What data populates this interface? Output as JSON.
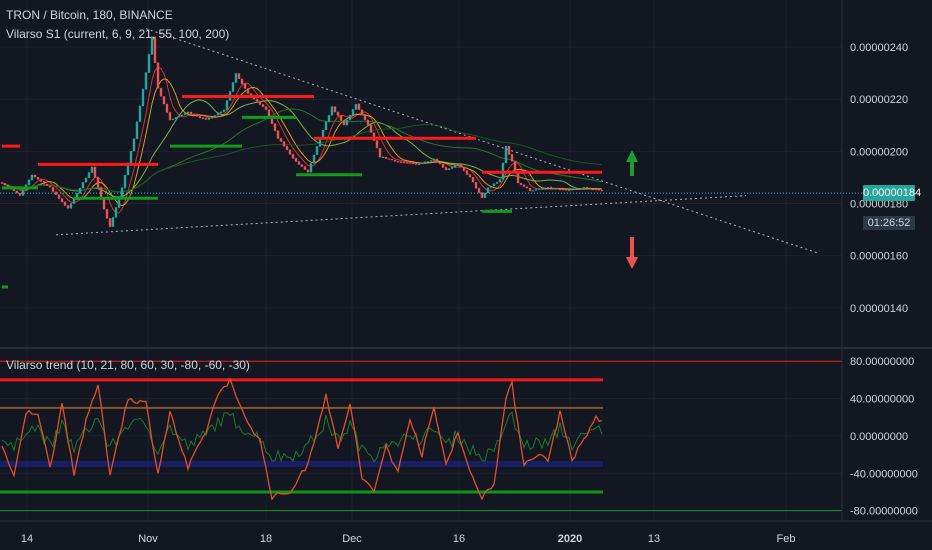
{
  "header": {
    "title": "TRON / Bitcoin, 180, BINANCE",
    "indicator": "Vilarso S1 (current, 6, 9, 21, 55, 100, 200)"
  },
  "oscillator": {
    "title": "Vilarso trend (10, 21, 80, 60, 30, -80, -60, -30)"
  },
  "price_badge": {
    "value": "0.00000184",
    "countdown": "01:26:52",
    "color": "#26a69a"
  },
  "colors": {
    "background": "#131722",
    "grid": "#1e222d",
    "candle_up": "#26a69a",
    "candle_down": "#ef5350",
    "red_level": "#ff1a1a",
    "green_level": "#0f9d1a",
    "arrow_up": "#1f9a2d",
    "arrow_down": "#ef5350",
    "osc_line": "#e0502a",
    "osc_secondary": "#1e7a2a"
  },
  "icons": {
    "arrow_up": "arrow-up-icon",
    "arrow_down": "arrow-down-icon"
  },
  "chart_data": [
    {
      "type": "candlestick",
      "title": "TRON / Bitcoin, 180, BINANCE",
      "y_ticks": [
        "0.00000240",
        "0.00000220",
        "0.00000200",
        "0.00000180",
        "0.00000160",
        "0.00000140"
      ],
      "x_ticks": [
        "14",
        "Nov",
        "18",
        "Dec",
        "16",
        "2020",
        "13",
        "Feb"
      ],
      "ylim": [
        1.25e-06,
        2.58e-06
      ],
      "last_price": 1.84e-06,
      "price_path": [
        {
          "t": 0,
          "p": 1.88e-06
        },
        {
          "t": 3,
          "p": 1.83e-06
        },
        {
          "t": 5,
          "p": 1.91e-06
        },
        {
          "t": 8,
          "p": 1.86e-06
        },
        {
          "t": 11,
          "p": 1.78e-06
        },
        {
          "t": 13,
          "p": 1.86e-06
        },
        {
          "t": 15,
          "p": 1.94e-06
        },
        {
          "t": 17,
          "p": 1.78e-06
        },
        {
          "t": 18,
          "p": 1.71e-06
        },
        {
          "t": 20,
          "p": 1.86e-06
        },
        {
          "t": 22,
          "p": 2.05e-06
        },
        {
          "t": 24,
          "p": 2.3e-06
        },
        {
          "t": 25,
          "p": 2.44e-06
        },
        {
          "t": 26,
          "p": 2.24e-06
        },
        {
          "t": 28,
          "p": 2.12e-06
        },
        {
          "t": 31,
          "p": 2.15e-06
        },
        {
          "t": 34,
          "p": 2.12e-06
        },
        {
          "t": 37,
          "p": 2.16e-06
        },
        {
          "t": 39,
          "p": 2.3e-06
        },
        {
          "t": 41,
          "p": 2.22e-06
        },
        {
          "t": 44,
          "p": 2.16e-06
        },
        {
          "t": 46,
          "p": 2.05e-06
        },
        {
          "t": 49,
          "p": 1.96e-06
        },
        {
          "t": 51,
          "p": 1.92e-06
        },
        {
          "t": 53,
          "p": 2.05e-06
        },
        {
          "t": 55,
          "p": 2.17e-06
        },
        {
          "t": 57,
          "p": 2.1e-06
        },
        {
          "t": 59,
          "p": 2.18e-06
        },
        {
          "t": 61,
          "p": 2.1e-06
        },
        {
          "t": 63,
          "p": 1.98e-06
        },
        {
          "t": 66,
          "p": 1.96e-06
        },
        {
          "t": 69,
          "p": 1.95e-06
        },
        {
          "t": 72,
          "p": 1.97e-06
        },
        {
          "t": 74,
          "p": 1.93e-06
        },
        {
          "t": 76,
          "p": 1.95e-06
        },
        {
          "t": 78,
          "p": 1.9e-06
        },
        {
          "t": 80,
          "p": 1.82e-06
        },
        {
          "t": 81,
          "p": 1.86e-06
        },
        {
          "t": 83,
          "p": 1.89e-06
        },
        {
          "t": 84,
          "p": 2.02e-06
        },
        {
          "t": 85,
          "p": 1.96e-06
        },
        {
          "t": 86,
          "p": 1.88e-06
        },
        {
          "t": 88,
          "p": 1.85e-06
        },
        {
          "t": 91,
          "p": 1.86e-06
        },
        {
          "t": 94,
          "p": 1.85e-06
        },
        {
          "t": 97,
          "p": 1.86e-06
        },
        {
          "t": 100,
          "p": 1.85e-06
        }
      ],
      "red_levels": [
        {
          "t0": 0,
          "t1": 3,
          "p": 2.02e-06
        },
        {
          "t0": 6,
          "t1": 26,
          "p": 1.95e-06
        },
        {
          "t0": 30,
          "t1": 52,
          "p": 2.21e-06
        },
        {
          "t0": 52,
          "t1": 79,
          "p": 2.05e-06
        },
        {
          "t0": 80,
          "t1": 100,
          "p": 1.92e-06
        }
      ],
      "green_levels": [
        {
          "t0": 0,
          "t1": 6,
          "p": 1.86e-06
        },
        {
          "t0": 12,
          "t1": 26,
          "p": 1.82e-06
        },
        {
          "t0": 28,
          "t1": 40,
          "p": 2.02e-06
        },
        {
          "t0": 40,
          "t1": 49,
          "p": 2.13e-06
        },
        {
          "t0": 49,
          "t1": 60,
          "p": 1.91e-06
        },
        {
          "t0": 80,
          "t1": 85,
          "p": 1.77e-06
        },
        {
          "t0": 0,
          "t1": 1,
          "p": 1.48e-06
        }
      ],
      "trendlines": [
        {
          "t0": 24,
          "p0": 2.47e-06,
          "t1": 136,
          "p1": 1.61e-06
        },
        {
          "t0": 9,
          "p0": 1.68e-06,
          "t1": 124,
          "p1": 1.83e-06
        }
      ]
    },
    {
      "type": "line",
      "title": "Vilarso trend (10, 21, 80, 60, 30, -80, -60, -30)",
      "y_ticks": [
        "80.00000000",
        "40.00000000",
        "0.00000000",
        "-40.00000000",
        "-80.00000000"
      ],
      "ylim": [
        -90,
        92
      ],
      "levels": [
        80,
        60,
        30,
        -30,
        -60,
        -80
      ],
      "oscillator_path": [
        {
          "t": 0,
          "v": -10
        },
        {
          "t": 2,
          "v": -45
        },
        {
          "t": 4,
          "v": 25
        },
        {
          "t": 6,
          "v": 25
        },
        {
          "t": 8,
          "v": -35
        },
        {
          "t": 10,
          "v": 35
        },
        {
          "t": 12,
          "v": -40
        },
        {
          "t": 14,
          "v": 15
        },
        {
          "t": 16,
          "v": 55
        },
        {
          "t": 18,
          "v": -40
        },
        {
          "t": 21,
          "v": 40
        },
        {
          "t": 24,
          "v": 35
        },
        {
          "t": 26,
          "v": -40
        },
        {
          "t": 28,
          "v": 25
        },
        {
          "t": 31,
          "v": -35
        },
        {
          "t": 34,
          "v": 5
        },
        {
          "t": 36,
          "v": 45
        },
        {
          "t": 38,
          "v": 60
        },
        {
          "t": 39,
          "v": 40
        },
        {
          "t": 41,
          "v": 15
        },
        {
          "t": 43,
          "v": -5
        },
        {
          "t": 45,
          "v": -65
        },
        {
          "t": 48,
          "v": -60
        },
        {
          "t": 51,
          "v": -30
        },
        {
          "t": 54,
          "v": 45
        },
        {
          "t": 56,
          "v": -15
        },
        {
          "t": 58,
          "v": 35
        },
        {
          "t": 60,
          "v": -45
        },
        {
          "t": 62,
          "v": -60
        },
        {
          "t": 64,
          "v": -10
        },
        {
          "t": 66,
          "v": -40
        },
        {
          "t": 68,
          "v": 20
        },
        {
          "t": 70,
          "v": -20
        },
        {
          "t": 72,
          "v": 30
        },
        {
          "t": 74,
          "v": -30
        },
        {
          "t": 76,
          "v": 5
        },
        {
          "t": 78,
          "v": -40
        },
        {
          "t": 80,
          "v": -65
        },
        {
          "t": 82,
          "v": -50
        },
        {
          "t": 84,
          "v": 40
        },
        {
          "t": 85,
          "v": 55
        },
        {
          "t": 87,
          "v": -30
        },
        {
          "t": 89,
          "v": -20
        },
        {
          "t": 91,
          "v": -25
        },
        {
          "t": 93,
          "v": 25
        },
        {
          "t": 95,
          "v": -25
        },
        {
          "t": 97,
          "v": -5
        },
        {
          "t": 99,
          "v": 20
        },
        {
          "t": 100,
          "v": 15
        }
      ]
    }
  ]
}
